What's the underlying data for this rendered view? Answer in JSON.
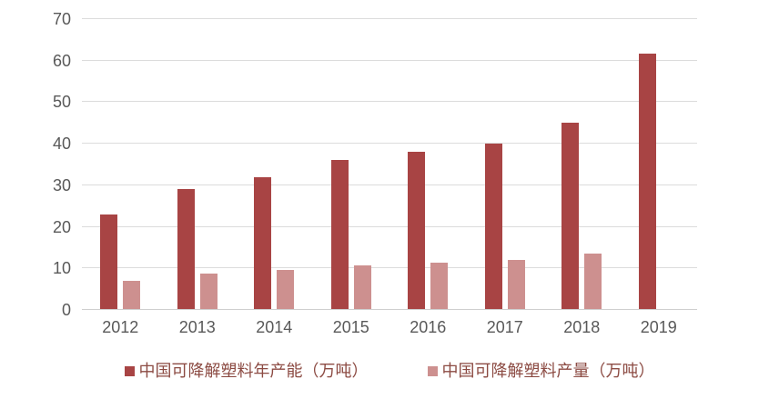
{
  "chart_data": {
    "type": "bar",
    "title": "",
    "xlabel": "",
    "ylabel": "",
    "categories": [
      "2012",
      "2013",
      "2014",
      "2015",
      "2016",
      "2017",
      "2018",
      "2019"
    ],
    "series": [
      {
        "name": "中国可降解塑料年产能（万吨）",
        "color": "#A84444",
        "values": [
          23,
          29,
          32,
          36,
          38,
          40,
          45,
          61.7
        ]
      },
      {
        "name": "中国可降解塑料产量（万吨）",
        "color": "#CD908F",
        "values": [
          7,
          8.7,
          9.7,
          10.7,
          11.4,
          12.1,
          13.5,
          null
        ]
      }
    ],
    "ylim": [
      0,
      70
    ],
    "yticks": [
      0,
      10,
      20,
      30,
      40,
      50,
      60,
      70
    ],
    "grid": true,
    "legend_position": "bottom"
  },
  "colors": {
    "background": "#FFFFFF",
    "gridline": "#DCDCDC",
    "axis_line": "#CFCFCF",
    "tick_text": "#595959",
    "legend_text": "#8C4B43"
  }
}
